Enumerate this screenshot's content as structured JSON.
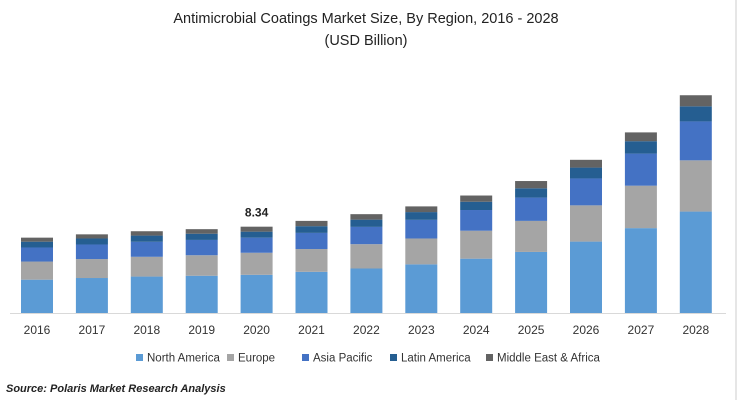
{
  "chart_data": {
    "type": "bar",
    "stacked": true,
    "title": "Antimicrobial Coatings Market Size, By Region, 2016 - 2028",
    "subtitle": "(USD Billion)",
    "xlabel": "",
    "ylabel": "",
    "ylim": [
      0,
      22
    ],
    "grid": false,
    "legend_position": "bottom",
    "categories": [
      "2016",
      "2017",
      "2018",
      "2019",
      "2020",
      "2021",
      "2022",
      "2023",
      "2024",
      "2025",
      "2026",
      "2027",
      "2028"
    ],
    "series": [
      {
        "name": "North America",
        "color": "#5b9bd5",
        "values": [
          3.22,
          3.38,
          3.52,
          3.6,
          3.69,
          3.98,
          4.3,
          4.7,
          5.25,
          5.9,
          6.9,
          8.2,
          9.8
        ]
      },
      {
        "name": "Europe",
        "color": "#a5a5a5",
        "values": [
          1.75,
          1.83,
          1.91,
          1.98,
          2.13,
          2.2,
          2.35,
          2.5,
          2.7,
          3.0,
          3.5,
          4.1,
          4.95
        ]
      },
      {
        "name": "Asia Pacific",
        "color": "#4472c4",
        "values": [
          1.36,
          1.41,
          1.45,
          1.48,
          1.46,
          1.56,
          1.67,
          1.8,
          2.0,
          2.25,
          2.6,
          3.1,
          3.76
        ]
      },
      {
        "name": "Latin America",
        "color": "#255e91",
        "values": [
          0.56,
          0.58,
          0.6,
          0.6,
          0.58,
          0.65,
          0.7,
          0.75,
          0.8,
          0.9,
          1.05,
          1.2,
          1.46
        ]
      },
      {
        "name": "Middle East & Africa",
        "color": "#636363",
        "values": [
          0.39,
          0.4,
          0.42,
          0.44,
          0.48,
          0.51,
          0.53,
          0.55,
          0.6,
          0.7,
          0.75,
          0.85,
          1.07
        ]
      }
    ],
    "annotations": [
      {
        "category": "2020",
        "text": "8.34"
      }
    ]
  },
  "source": "Source: Polaris Market Research Analysis"
}
